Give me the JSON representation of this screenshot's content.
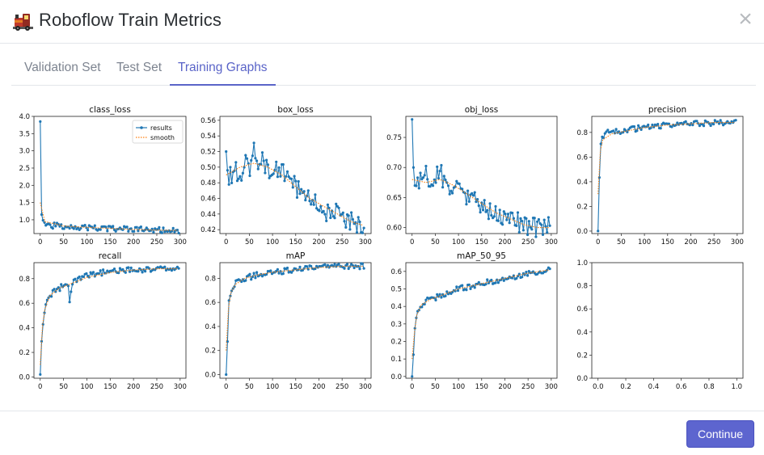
{
  "header": {
    "title": "Roboflow Train Metrics",
    "close_label": "×"
  },
  "tabs": [
    {
      "label": "Validation Set",
      "active": false
    },
    {
      "label": "Test Set",
      "active": false
    },
    {
      "label": "Training Graphs",
      "active": true
    }
  ],
  "footer": {
    "continue_label": "Continue"
  },
  "colors": {
    "accent": "#5d65cf",
    "series_results": "#1f77b4",
    "series_smooth": "#ff7f0e"
  },
  "chart_data": [
    {
      "type": "line",
      "title": "class_loss",
      "x_range": [
        0,
        299
      ],
      "ylim": [
        0.6,
        4.0
      ],
      "xticks": [
        0,
        50,
        100,
        150,
        200,
        250,
        300
      ],
      "yticks": [
        "1.0",
        "1.5",
        "2.0",
        "2.5",
        "3.0",
        "3.5",
        "4.0"
      ],
      "legend": {
        "position": "top-right",
        "entries": [
          "results",
          "smooth"
        ]
      },
      "series": [
        {
          "name": "results",
          "x": [
            0,
            1,
            2,
            3,
            4,
            5,
            8,
            10,
            15,
            20,
            30,
            40,
            50,
            60,
            70,
            80,
            100,
            120,
            150,
            200,
            250,
            299
          ],
          "values": [
            3.85,
            1.8,
            1.35,
            1.15,
            1.05,
            0.98,
            0.93,
            0.9,
            0.88,
            0.85,
            0.83,
            0.82,
            0.8,
            0.85,
            0.8,
            0.78,
            0.77,
            0.76,
            0.74,
            0.72,
            0.7,
            0.69
          ]
        },
        {
          "name": "smooth",
          "x": [
            0,
            10,
            50,
            100,
            150,
            200,
            250,
            299
          ],
          "values": [
            1.5,
            0.95,
            0.82,
            0.78,
            0.75,
            0.72,
            0.7,
            0.69
          ]
        }
      ]
    },
    {
      "type": "line",
      "title": "box_loss",
      "x_range": [
        0,
        299
      ],
      "ylim": [
        0.415,
        0.565
      ],
      "xticks": [
        0,
        50,
        100,
        150,
        200,
        250,
        300
      ],
      "yticks": [
        "0.42",
        "0.44",
        "0.46",
        "0.48",
        "0.50",
        "0.52",
        "0.54",
        "0.56"
      ],
      "series": [
        {
          "name": "results",
          "x": [
            0,
            5,
            10,
            20,
            30,
            40,
            50,
            60,
            70,
            80,
            90,
            100,
            120,
            140,
            160,
            180,
            200,
            220,
            240,
            260,
            280,
            299
          ],
          "values": [
            0.52,
            0.48,
            0.49,
            0.5,
            0.49,
            0.51,
            0.5,
            0.52,
            0.49,
            0.51,
            0.5,
            0.49,
            0.5,
            0.48,
            0.47,
            0.46,
            0.45,
            0.44,
            0.44,
            0.43,
            0.43,
            0.42
          ]
        },
        {
          "name": "smooth",
          "x": [
            0,
            30,
            60,
            90,
            120,
            150,
            180,
            210,
            240,
            270,
            299
          ],
          "values": [
            0.49,
            0.5,
            0.505,
            0.5,
            0.49,
            0.475,
            0.46,
            0.45,
            0.44,
            0.43,
            0.425
          ]
        }
      ]
    },
    {
      "type": "line",
      "title": "obj_loss",
      "x_range": [
        0,
        299
      ],
      "ylim": [
        0.59,
        0.785
      ],
      "xticks": [
        0,
        50,
        100,
        150,
        200,
        250,
        300
      ],
      "yticks": [
        "0.60",
        "0.65",
        "0.70",
        "0.75"
      ],
      "series": [
        {
          "name": "results",
          "x": [
            0,
            3,
            5,
            10,
            20,
            30,
            40,
            50,
            60,
            70,
            80,
            90,
            100,
            120,
            140,
            160,
            180,
            200,
            220,
            240,
            260,
            280,
            299
          ],
          "values": [
            0.78,
            0.7,
            0.68,
            0.67,
            0.68,
            0.69,
            0.67,
            0.68,
            0.69,
            0.68,
            0.67,
            0.66,
            0.66,
            0.65,
            0.64,
            0.63,
            0.62,
            0.615,
            0.61,
            0.605,
            0.6,
            0.605,
            0.6
          ]
        },
        {
          "name": "smooth",
          "x": [
            0,
            30,
            60,
            90,
            120,
            150,
            180,
            210,
            240,
            270,
            299
          ],
          "values": [
            0.68,
            0.675,
            0.68,
            0.67,
            0.655,
            0.64,
            0.625,
            0.615,
            0.605,
            0.6,
            0.6
          ]
        }
      ]
    },
    {
      "type": "line",
      "title": "precision",
      "x_range": [
        0,
        299
      ],
      "ylim": [
        -0.02,
        0.93
      ],
      "xticks": [
        0,
        50,
        100,
        150,
        200,
        250,
        300
      ],
      "yticks": [
        "0.0",
        "0.2",
        "0.4",
        "0.6",
        "0.8"
      ],
      "series": [
        {
          "name": "results",
          "x": [
            0,
            2,
            4,
            6,
            10,
            15,
            20,
            30,
            40,
            50,
            60,
            80,
            100,
            120,
            150,
            200,
            250,
            299
          ],
          "values": [
            0.0,
            0.25,
            0.62,
            0.72,
            0.75,
            0.77,
            0.8,
            0.79,
            0.81,
            0.8,
            0.82,
            0.83,
            0.84,
            0.85,
            0.86,
            0.87,
            0.88,
            0.88
          ]
        },
        {
          "name": "smooth",
          "x": [
            0,
            5,
            10,
            30,
            60,
            100,
            150,
            200,
            250,
            299
          ],
          "values": [
            0.3,
            0.65,
            0.74,
            0.79,
            0.81,
            0.84,
            0.86,
            0.87,
            0.88,
            0.88
          ]
        }
      ]
    },
    {
      "type": "line",
      "title": "recall",
      "x_range": [
        0,
        299
      ],
      "ylim": [
        -0.01,
        0.93
      ],
      "xticks": [
        0,
        50,
        100,
        150,
        200,
        250,
        300
      ],
      "yticks": [
        "0.0",
        "0.2",
        "0.4",
        "0.6",
        "0.8"
      ],
      "series": [
        {
          "name": "results",
          "x": [
            0,
            2,
            4,
            6,
            10,
            15,
            20,
            30,
            40,
            50,
            60,
            62,
            70,
            80,
            100,
            120,
            150,
            200,
            250,
            299
          ],
          "values": [
            0.02,
            0.18,
            0.4,
            0.45,
            0.55,
            0.62,
            0.66,
            0.7,
            0.72,
            0.74,
            0.75,
            0.58,
            0.77,
            0.79,
            0.82,
            0.84,
            0.86,
            0.87,
            0.88,
            0.88
          ]
        },
        {
          "name": "smooth",
          "x": [
            0,
            5,
            10,
            20,
            40,
            60,
            100,
            150,
            200,
            250,
            299
          ],
          "values": [
            0.1,
            0.42,
            0.55,
            0.66,
            0.72,
            0.75,
            0.81,
            0.85,
            0.87,
            0.88,
            0.88
          ]
        }
      ]
    },
    {
      "type": "line",
      "title": "mAP",
      "x_range": [
        0,
        299
      ],
      "ylim": [
        -0.03,
        0.93
      ],
      "xticks": [
        0,
        50,
        100,
        150,
        200,
        250,
        300
      ],
      "yticks": [
        "0.0",
        "0.2",
        "0.4",
        "0.6",
        "0.8"
      ],
      "series": [
        {
          "name": "results",
          "x": [
            0,
            2,
            4,
            6,
            10,
            15,
            20,
            30,
            40,
            50,
            70,
            100,
            150,
            200,
            250,
            299
          ],
          "values": [
            0.0,
            0.1,
            0.45,
            0.6,
            0.68,
            0.72,
            0.76,
            0.79,
            0.8,
            0.81,
            0.83,
            0.85,
            0.87,
            0.89,
            0.9,
            0.9
          ]
        },
        {
          "name": "smooth",
          "x": [
            0,
            5,
            10,
            20,
            40,
            70,
            100,
            150,
            200,
            250,
            299
          ],
          "values": [
            0.2,
            0.55,
            0.68,
            0.75,
            0.8,
            0.83,
            0.85,
            0.87,
            0.89,
            0.9,
            0.9
          ]
        }
      ]
    },
    {
      "type": "line",
      "title": "mAP_50_95",
      "x_range": [
        0,
        299
      ],
      "ylim": [
        -0.01,
        0.65
      ],
      "xticks": [
        0,
        50,
        100,
        150,
        200,
        250,
        300
      ],
      "yticks": [
        "0.0",
        "0.1",
        "0.2",
        "0.3",
        "0.4",
        "0.5",
        "0.6"
      ],
      "series": [
        {
          "name": "results",
          "x": [
            0,
            2,
            4,
            6,
            10,
            15,
            20,
            30,
            40,
            50,
            70,
            100,
            150,
            200,
            250,
            299
          ],
          "values": [
            0.0,
            0.05,
            0.2,
            0.28,
            0.35,
            0.38,
            0.41,
            0.43,
            0.44,
            0.45,
            0.47,
            0.5,
            0.53,
            0.56,
            0.59,
            0.61
          ]
        },
        {
          "name": "smooth",
          "x": [
            0,
            5,
            10,
            20,
            40,
            70,
            100,
            150,
            200,
            250,
            299
          ],
          "values": [
            0.1,
            0.25,
            0.35,
            0.41,
            0.44,
            0.47,
            0.5,
            0.53,
            0.56,
            0.59,
            0.61
          ]
        }
      ]
    },
    {
      "type": "line",
      "title": "",
      "x_range": [
        0,
        1
      ],
      "ylim": [
        0,
        1
      ],
      "xticks": [
        "0.0",
        "0.2",
        "0.4",
        "0.6",
        "0.8",
        "1.0"
      ],
      "yticks": [
        "0.0",
        "0.2",
        "0.4",
        "0.6",
        "0.8",
        "1.0"
      ],
      "series": []
    }
  ]
}
